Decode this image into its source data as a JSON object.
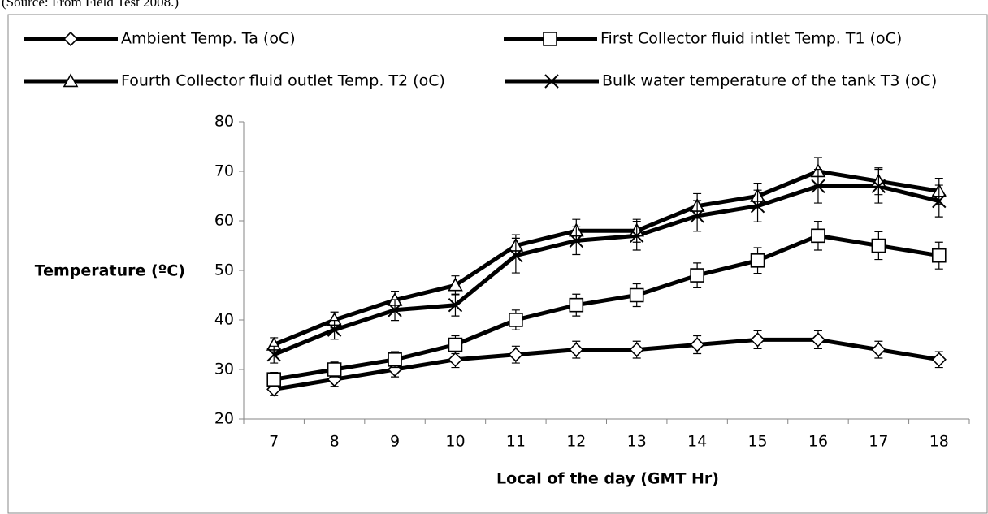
{
  "source": "(Source: From Field Test 2008.)",
  "chart_data": {
    "type": "line",
    "x_label": "Local of the day (GMT Hr)",
    "y_label": "Temperature (ºC)",
    "categories": [
      "7",
      "8",
      "9",
      "10",
      "11",
      "12",
      "13",
      "14",
      "15",
      "16",
      "17",
      "18"
    ],
    "ylim": [
      20,
      80
    ],
    "yticks": [
      20,
      30,
      40,
      50,
      60,
      70,
      80
    ],
    "series": [
      {
        "name": "Ambient Temp. Ta (oC)",
        "color": "#000000",
        "marker": "diamond",
        "values": [
          26,
          28,
          30,
          32,
          33,
          34,
          34,
          35,
          36,
          36,
          34,
          32
        ],
        "errors": [
          1.3,
          1.4,
          1.5,
          1.6,
          1.7,
          1.7,
          1.7,
          1.8,
          1.8,
          1.8,
          1.7,
          1.6
        ]
      },
      {
        "name": "First Collector fluid intlet Temp. T1 (oC)",
        "color": "#000000",
        "marker": "square",
        "values": [
          28,
          30,
          32,
          35,
          40,
          43,
          45,
          49,
          52,
          57,
          55,
          53
        ],
        "errors": [
          1.4,
          1.5,
          1.6,
          1.8,
          2.0,
          2.2,
          2.3,
          2.5,
          2.6,
          2.9,
          2.8,
          2.7
        ]
      },
      {
        "name": "Fourth Collector fluid outlet Temp. T2 (oC)",
        "color": "#000000",
        "marker": "triangle",
        "values": [
          35,
          40,
          44,
          47,
          55,
          58,
          58,
          63,
          65,
          70,
          68,
          66
        ],
        "errors": [
          1.4,
          1.6,
          1.8,
          1.9,
          2.2,
          2.3,
          2.3,
          2.5,
          2.6,
          2.8,
          2.7,
          2.6
        ]
      },
      {
        "name": "Bulk water temperature of the tank T3 (oC)",
        "color": "#000000",
        "marker": "x",
        "values": [
          33,
          38,
          42,
          43,
          53,
          56,
          57,
          61,
          63,
          67,
          67,
          64
        ],
        "errors": [
          1.7,
          1.9,
          2.1,
          2.2,
          3.5,
          2.8,
          2.9,
          3.1,
          3.2,
          3.4,
          3.4,
          3.2
        ]
      }
    ]
  }
}
